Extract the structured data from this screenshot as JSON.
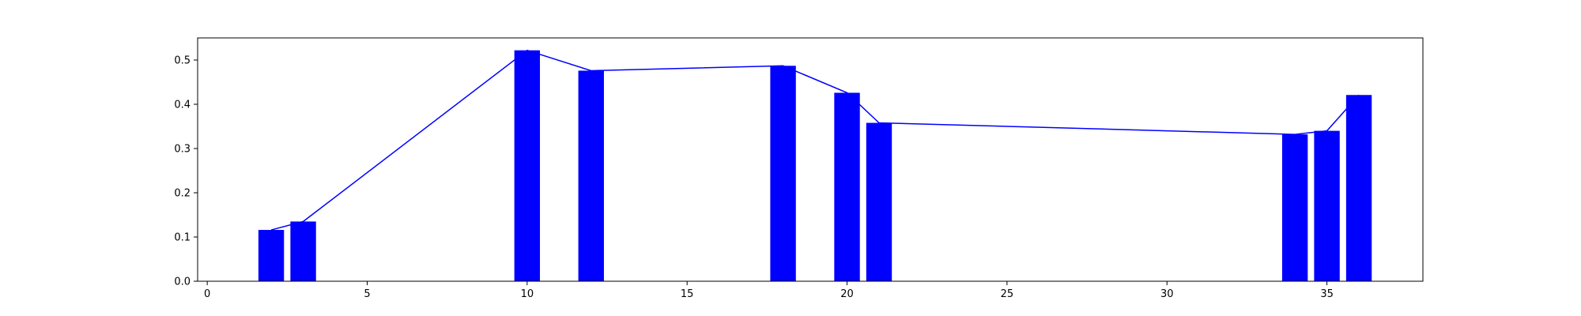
{
  "chart_data": {
    "type": "bar",
    "title": "",
    "xlabel": "",
    "ylabel": "",
    "xlim": [
      -0.3,
      38
    ],
    "ylim": [
      0,
      0.55
    ],
    "xticks": [
      0,
      5,
      10,
      15,
      20,
      25,
      30,
      35
    ],
    "yticks": [
      0.0,
      0.1,
      0.2,
      0.3,
      0.4,
      0.5
    ],
    "xtick_labels": [
      "0",
      "5",
      "10",
      "15",
      "20",
      "25",
      "30",
      "35"
    ],
    "ytick_labels": [
      "0.0",
      "0.1",
      "0.2",
      "0.3",
      "0.4",
      "0.5"
    ],
    "grid": false,
    "bar_width": 0.8,
    "bar_color": "#0000ff",
    "line_color": "#0000ff",
    "x": [
      2,
      3,
      10,
      12,
      18,
      20,
      21,
      34,
      35,
      36
    ],
    "values": [
      0.116,
      0.135,
      0.522,
      0.476,
      0.487,
      0.426,
      0.358,
      0.332,
      0.34,
      0.421
    ],
    "line": {
      "x": [
        2,
        3,
        10,
        12,
        18,
        20,
        21,
        34,
        35,
        36
      ],
      "values": [
        0.116,
        0.135,
        0.522,
        0.476,
        0.487,
        0.426,
        0.358,
        0.332,
        0.34,
        0.421
      ]
    }
  }
}
